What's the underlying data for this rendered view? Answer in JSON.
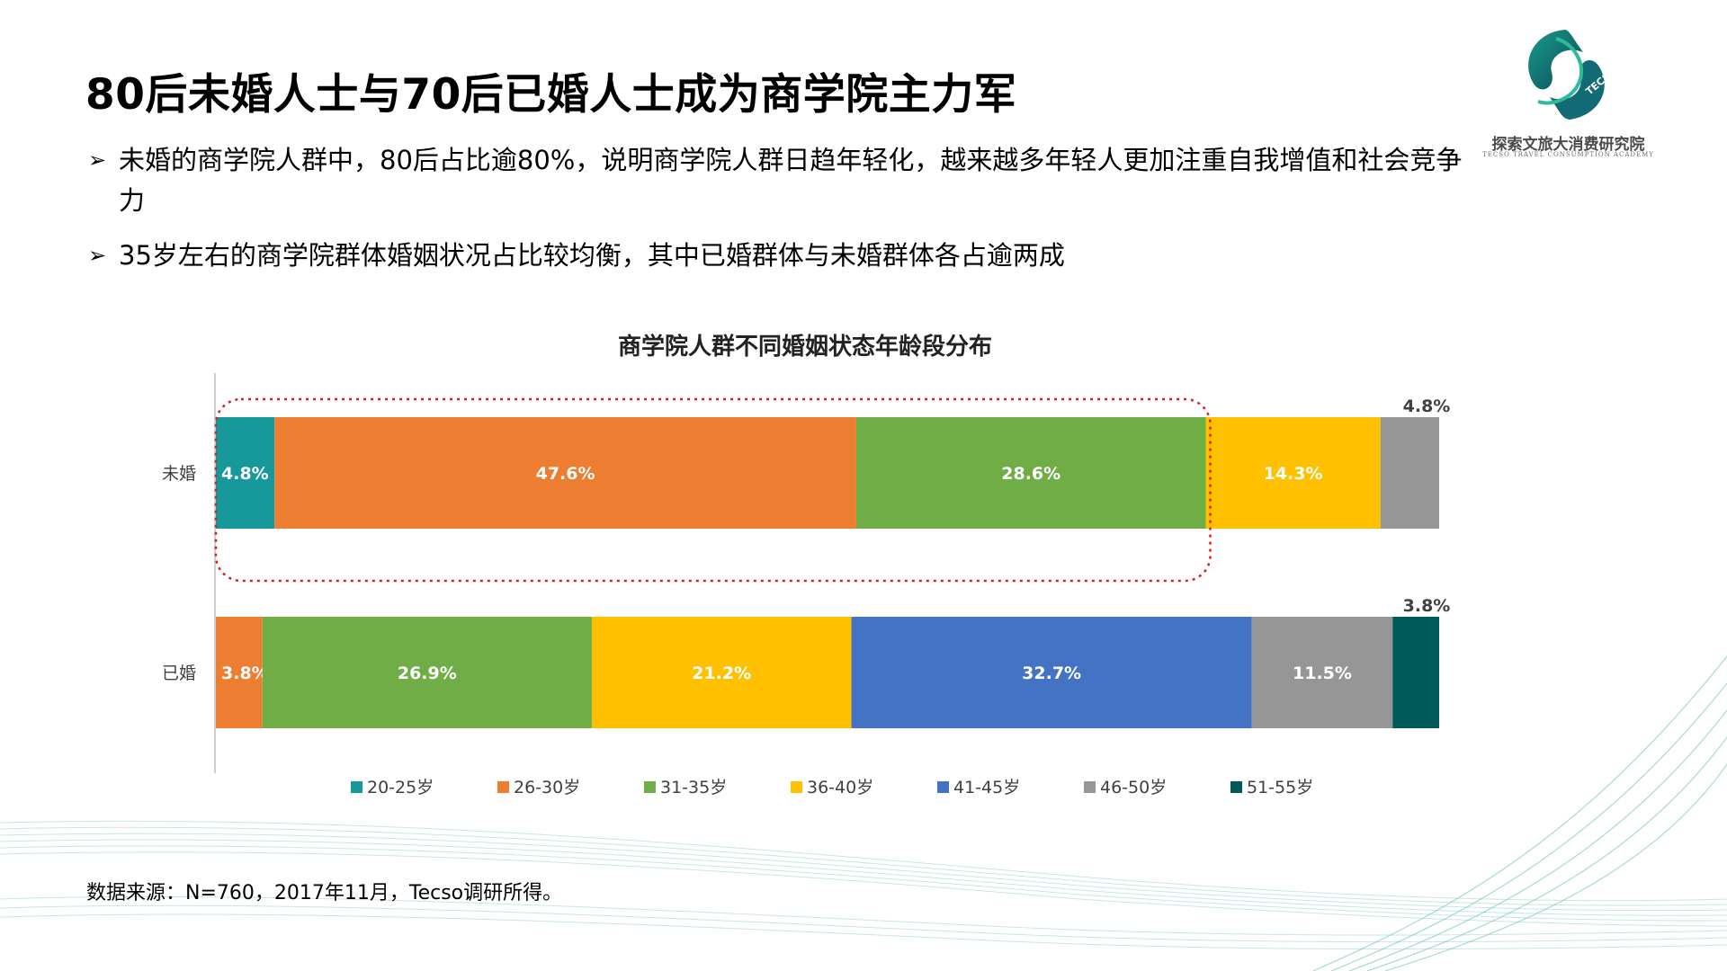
{
  "page": {
    "title": "80后未婚人士与70后已婚人士成为商学院主力军",
    "bullets": [
      "未婚的商学院人群中，80后占比逾80%，说明商学院人群日趋年轻化，越来越多年轻人更加注重自我增值和社会竞争力",
      "35岁左右的商学院群体婚姻状况占比较均衡，其中已婚群体与未婚群体各占逾两成"
    ],
    "bullet_marker": "➢",
    "source": "数据来源：N=760，2017年11月，Tecso调研所得。",
    "logo": {
      "cn": "探索文旅大消费研究院",
      "en": "TECSO TRAVEL CONSUMPTION ACADEMY",
      "badge": "TECSO"
    }
  },
  "chart_data": {
    "type": "bar",
    "orientation": "horizontal",
    "stacked": true,
    "title": "商学院人群不同婚姻状态年龄段分布",
    "categories": [
      "未婚",
      "已婚"
    ],
    "series": [
      {
        "name": "20-25岁",
        "color": "#17999b",
        "values": [
          4.8,
          0
        ]
      },
      {
        "name": "26-30岁",
        "color": "#ed7d31",
        "values": [
          47.6,
          3.8
        ]
      },
      {
        "name": "31-35岁",
        "color": "#70ad47",
        "values": [
          28.6,
          26.9
        ]
      },
      {
        "name": "36-40岁",
        "color": "#ffc000",
        "values": [
          14.3,
          21.2
        ]
      },
      {
        "name": "41-45岁",
        "color": "#4472c4",
        "values": [
          0,
          32.7
        ]
      },
      {
        "name": "46-50岁",
        "color": "#969696",
        "values": [
          4.8,
          11.5
        ]
      },
      {
        "name": "51-55岁",
        "color": "#005a5a",
        "values": [
          0,
          3.8
        ]
      }
    ],
    "labels": [
      [
        "4.8%",
        "47.6%",
        "28.6%",
        "14.3%",
        "",
        "4.8%",
        ""
      ],
      [
        "",
        "3.8%",
        "26.9%",
        "21.2%",
        "32.7%",
        "11.5%",
        "3.8%"
      ]
    ],
    "legend_position": "bottom",
    "grid": false,
    "highlight": "红色虚线框标注未婚组20-35岁区段"
  }
}
